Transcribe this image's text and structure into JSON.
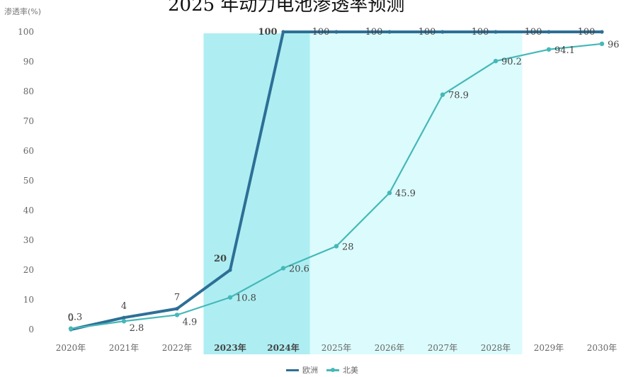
{
  "header": {
    "title": "2025 年动力电池渗透率预测",
    "y_unit": "渗透率(%)"
  },
  "chart_data": {
    "type": "line",
    "categories": [
      "2020年",
      "2021年",
      "2022年",
      "2023年",
      "2024年",
      "2025年",
      "2026年",
      "2027年",
      "2028年",
      "2029年",
      "2030年"
    ],
    "y_ticks": [
      0,
      10,
      20,
      30,
      40,
      50,
      60,
      70,
      80,
      90,
      100
    ],
    "ylim": [
      0,
      100
    ],
    "highlight_categories_strong": [
      "2023年",
      "2024年"
    ],
    "highlight_categories_light": [
      "2025年",
      "2026年",
      "2027年",
      "2028年"
    ],
    "grid": false,
    "legend_position": "bottom",
    "series": [
      {
        "name": "欧洲",
        "color": "#2e6f96",
        "values": [
          0,
          4,
          7,
          20,
          100,
          100,
          100,
          100,
          100,
          100,
          100
        ],
        "labels": [
          "0",
          "4",
          "7",
          "20",
          "100",
          "100",
          "100",
          "100",
          "100",
          "100",
          "100"
        ]
      },
      {
        "name": "北美",
        "color": "#45b8b8",
        "values": [
          0.3,
          2.8,
          4.9,
          10.8,
          20.6,
          28,
          45.9,
          78.9,
          90.2,
          94.1,
          96
        ],
        "labels": [
          "0.3",
          "2.8",
          "4.9",
          "10.8",
          "20.6",
          "28",
          "45.9",
          "78.9",
          "90.2",
          "94.1",
          "96"
        ]
      }
    ]
  }
}
